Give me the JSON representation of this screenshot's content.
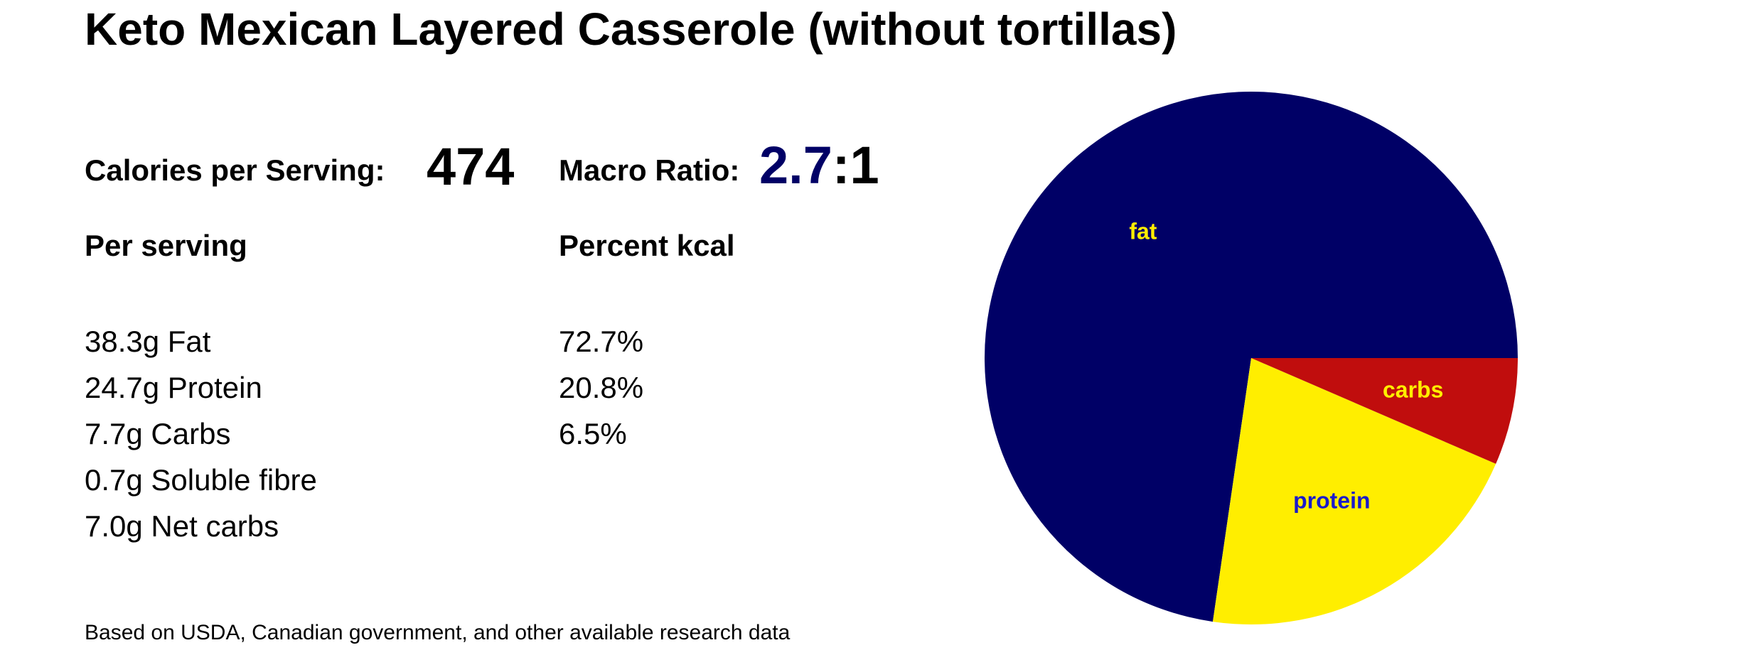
{
  "title": "Keto Mexican Layered Casserole (without tortillas)",
  "calories": {
    "label": "Calories per Serving:",
    "value": "474"
  },
  "macro_ratio": {
    "label": "Macro Ratio:",
    "number": "2.7",
    "suffix": ":1"
  },
  "per_serving": {
    "header": "Per serving",
    "items": [
      "38.3g Fat",
      "24.7g Protein",
      "7.7g Carbs",
      "0.7g Soluble fibre",
      "7.0g Net carbs"
    ]
  },
  "percent_kcal": {
    "header": "Percent kcal",
    "items": [
      "72.7%",
      "20.8%",
      "6.5%"
    ]
  },
  "footnote": "Based on USDA, Canadian government, and other available research data",
  "colors": {
    "fat": "#000066",
    "protein": "#ffee00",
    "carbs": "#c00d0d",
    "fat_label": "#ffee00",
    "protein_label": "#1a1acc",
    "carbs_label": "#ffee00"
  },
  "chart_data": {
    "type": "pie",
    "slices": [
      {
        "label": "fat",
        "value": 72.7
      },
      {
        "label": "protein",
        "value": 20.8
      },
      {
        "label": "carbs",
        "value": 6.5
      }
    ]
  }
}
